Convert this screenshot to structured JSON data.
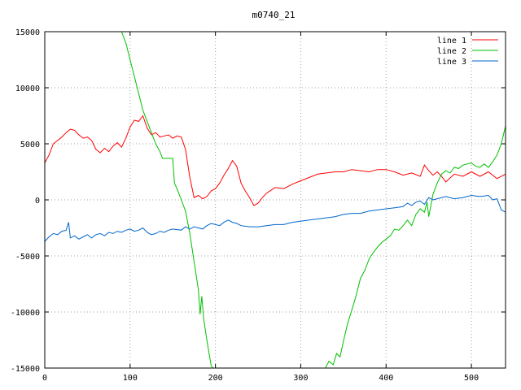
{
  "chart_data": {
    "type": "line",
    "title": "m0740_21",
    "xlabel": "",
    "ylabel": "",
    "xlim": [
      0,
      540
    ],
    "ylim": [
      -15000,
      15000
    ],
    "x_ticks": [
      0,
      100,
      200,
      300,
      400,
      500
    ],
    "y_ticks": [
      -15000,
      -10000,
      -5000,
      0,
      5000,
      10000,
      15000
    ],
    "grid": true,
    "legend_position": "top-right",
    "series": [
      {
        "name": "line 1",
        "color": "#ff0000",
        "points": [
          [
            0,
            3300
          ],
          [
            5,
            4000
          ],
          [
            10,
            5000
          ],
          [
            15,
            5300
          ],
          [
            20,
            5600
          ],
          [
            25,
            6000
          ],
          [
            30,
            6300
          ],
          [
            35,
            6200
          ],
          [
            40,
            5800
          ],
          [
            45,
            5500
          ],
          [
            50,
            5600
          ],
          [
            55,
            5300
          ],
          [
            60,
            4500
          ],
          [
            65,
            4200
          ],
          [
            70,
            4600
          ],
          [
            75,
            4300
          ],
          [
            80,
            4800
          ],
          [
            85,
            5100
          ],
          [
            90,
            4700
          ],
          [
            95,
            5500
          ],
          [
            100,
            6500
          ],
          [
            105,
            7100
          ],
          [
            110,
            7000
          ],
          [
            115,
            7500
          ],
          [
            120,
            6400
          ],
          [
            125,
            5800
          ],
          [
            130,
            6000
          ],
          [
            135,
            5600
          ],
          [
            140,
            5700
          ],
          [
            145,
            5800
          ],
          [
            150,
            5500
          ],
          [
            155,
            5700
          ],
          [
            160,
            5600
          ],
          [
            165,
            4500
          ],
          [
            170,
            2000
          ],
          [
            175,
            200
          ],
          [
            180,
            400
          ],
          [
            185,
            100
          ],
          [
            190,
            300
          ],
          [
            195,
            800
          ],
          [
            200,
            1000
          ],
          [
            205,
            1500
          ],
          [
            210,
            2200
          ],
          [
            215,
            2800
          ],
          [
            220,
            3500
          ],
          [
            225,
            3000
          ],
          [
            230,
            1500
          ],
          [
            235,
            800
          ],
          [
            240,
            200
          ],
          [
            245,
            -500
          ],
          [
            250,
            -300
          ],
          [
            255,
            200
          ],
          [
            260,
            600
          ],
          [
            270,
            1100
          ],
          [
            280,
            1000
          ],
          [
            290,
            1400
          ],
          [
            300,
            1700
          ],
          [
            310,
            2000
          ],
          [
            320,
            2300
          ],
          [
            330,
            2400
          ],
          [
            340,
            2500
          ],
          [
            350,
            2500
          ],
          [
            360,
            2700
          ],
          [
            370,
            2600
          ],
          [
            380,
            2500
          ],
          [
            390,
            2700
          ],
          [
            400,
            2700
          ],
          [
            410,
            2500
          ],
          [
            420,
            2200
          ],
          [
            430,
            2400
          ],
          [
            440,
            2100
          ],
          [
            445,
            3100
          ],
          [
            450,
            2600
          ],
          [
            455,
            2200
          ],
          [
            460,
            2500
          ],
          [
            465,
            2100
          ],
          [
            470,
            1600
          ],
          [
            480,
            2300
          ],
          [
            490,
            2100
          ],
          [
            500,
            2500
          ],
          [
            510,
            2100
          ],
          [
            520,
            2500
          ],
          [
            530,
            1900
          ],
          [
            540,
            2300
          ]
        ]
      },
      {
        "name": "line 2",
        "color": "#00c000",
        "points": [
          [
            90,
            15000
          ],
          [
            95,
            14000
          ],
          [
            100,
            12500
          ],
          [
            105,
            11000
          ],
          [
            110,
            9500
          ],
          [
            115,
            8000
          ],
          [
            120,
            7000
          ],
          [
            125,
            6000
          ],
          [
            130,
            5000
          ],
          [
            135,
            4300
          ],
          [
            138,
            3700
          ],
          [
            150,
            3700
          ],
          [
            152,
            1500
          ],
          [
            156,
            800
          ],
          [
            160,
            0
          ],
          [
            165,
            -1000
          ],
          [
            170,
            -3000
          ],
          [
            175,
            -5500
          ],
          [
            180,
            -8000
          ],
          [
            182,
            -10200
          ],
          [
            184,
            -8600
          ],
          [
            186,
            -10500
          ],
          [
            190,
            -12500
          ],
          [
            195,
            -14800
          ],
          [
            197,
            -15000
          ]
        ],
        "points_b": [
          [
            329,
            -15000
          ],
          [
            333,
            -14400
          ],
          [
            338,
            -14700
          ],
          [
            342,
            -13700
          ],
          [
            346,
            -14000
          ],
          [
            350,
            -12600
          ],
          [
            355,
            -11000
          ],
          [
            360,
            -9800
          ],
          [
            365,
            -8500
          ],
          [
            370,
            -7000
          ],
          [
            375,
            -6300
          ],
          [
            380,
            -5300
          ],
          [
            385,
            -4700
          ],
          [
            390,
            -4200
          ],
          [
            395,
            -3800
          ],
          [
            400,
            -3500
          ],
          [
            405,
            -3200
          ],
          [
            410,
            -2600
          ],
          [
            415,
            -2700
          ],
          [
            420,
            -2300
          ],
          [
            425,
            -1800
          ],
          [
            430,
            -2300
          ],
          [
            435,
            -1300
          ],
          [
            440,
            -800
          ],
          [
            445,
            -1100
          ],
          [
            448,
            -200
          ],
          [
            450,
            -1500
          ],
          [
            453,
            -300
          ],
          [
            455,
            500
          ],
          [
            460,
            1500
          ],
          [
            465,
            2300
          ],
          [
            470,
            2600
          ],
          [
            475,
            2400
          ],
          [
            480,
            2900
          ],
          [
            485,
            2800
          ],
          [
            490,
            3100
          ],
          [
            495,
            3200
          ],
          [
            500,
            3300
          ],
          [
            505,
            3000
          ],
          [
            510,
            2900
          ],
          [
            515,
            3200
          ],
          [
            520,
            2900
          ],
          [
            525,
            3400
          ],
          [
            530,
            4000
          ],
          [
            535,
            5000
          ],
          [
            540,
            6600
          ]
        ]
      },
      {
        "name": "line 3",
        "color": "#0066cc",
        "points": [
          [
            0,
            -3700
          ],
          [
            5,
            -3300
          ],
          [
            10,
            -3000
          ],
          [
            15,
            -3100
          ],
          [
            20,
            -2800
          ],
          [
            25,
            -2700
          ],
          [
            28,
            -2000
          ],
          [
            30,
            -3400
          ],
          [
            35,
            -3200
          ],
          [
            40,
            -3500
          ],
          [
            45,
            -3300
          ],
          [
            50,
            -3100
          ],
          [
            55,
            -3400
          ],
          [
            60,
            -3100
          ],
          [
            65,
            -3000
          ],
          [
            70,
            -3200
          ],
          [
            75,
            -2900
          ],
          [
            80,
            -3000
          ],
          [
            85,
            -2800
          ],
          [
            90,
            -2900
          ],
          [
            95,
            -2700
          ],
          [
            100,
            -2600
          ],
          [
            105,
            -2800
          ],
          [
            110,
            -2700
          ],
          [
            115,
            -2500
          ],
          [
            120,
            -2900
          ],
          [
            125,
            -3100
          ],
          [
            130,
            -3000
          ],
          [
            135,
            -2800
          ],
          [
            140,
            -2900
          ],
          [
            145,
            -2700
          ],
          [
            150,
            -2600
          ],
          [
            160,
            -2700
          ],
          [
            165,
            -2400
          ],
          [
            170,
            -2600
          ],
          [
            175,
            -2400
          ],
          [
            180,
            -2500
          ],
          [
            185,
            -2600
          ],
          [
            190,
            -2300
          ],
          [
            195,
            -2100
          ],
          [
            200,
            -2200
          ],
          [
            205,
            -2300
          ],
          [
            210,
            -2000
          ],
          [
            215,
            -1800
          ],
          [
            220,
            -2000
          ],
          [
            225,
            -2100
          ],
          [
            230,
            -2300
          ],
          [
            240,
            -2400
          ],
          [
            250,
            -2400
          ],
          [
            260,
            -2300
          ],
          [
            270,
            -2200
          ],
          [
            280,
            -2200
          ],
          [
            290,
            -2000
          ],
          [
            300,
            -1900
          ],
          [
            310,
            -1800
          ],
          [
            320,
            -1700
          ],
          [
            330,
            -1600
          ],
          [
            340,
            -1500
          ],
          [
            350,
            -1300
          ],
          [
            360,
            -1200
          ],
          [
            370,
            -1200
          ],
          [
            380,
            -1000
          ],
          [
            390,
            -900
          ],
          [
            400,
            -800
          ],
          [
            410,
            -700
          ],
          [
            420,
            -600
          ],
          [
            425,
            -300
          ],
          [
            430,
            -500
          ],
          [
            435,
            -200
          ],
          [
            440,
            -100
          ],
          [
            445,
            -400
          ],
          [
            450,
            200
          ],
          [
            455,
            0
          ],
          [
            460,
            100
          ],
          [
            470,
            300
          ],
          [
            480,
            100
          ],
          [
            490,
            200
          ],
          [
            500,
            400
          ],
          [
            510,
            300
          ],
          [
            520,
            400
          ],
          [
            525,
            0
          ],
          [
            530,
            100
          ],
          [
            535,
            -900
          ],
          [
            540,
            -1100
          ]
        ]
      }
    ]
  }
}
